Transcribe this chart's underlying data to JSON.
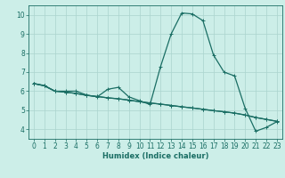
{
  "xlabel": "Humidex (Indice chaleur)",
  "ylabel": "",
  "background_color": "#cceee8",
  "grid_color": "#aad4ce",
  "line_color": "#1a6e64",
  "xlim": [
    -0.5,
    23.5
  ],
  "ylim": [
    3.5,
    10.5
  ],
  "xticks": [
    0,
    1,
    2,
    3,
    4,
    5,
    6,
    7,
    8,
    9,
    10,
    11,
    12,
    13,
    14,
    15,
    16,
    17,
    18,
    19,
    20,
    21,
    22,
    23
  ],
  "yticks": [
    4,
    5,
    6,
    7,
    8,
    9,
    10
  ],
  "line1_x": [
    0,
    1,
    2,
    3,
    4,
    5,
    6,
    7,
    8,
    9,
    10,
    11,
    12,
    13,
    14,
    15,
    16,
    17,
    18,
    19,
    20,
    21,
    22,
    23
  ],
  "line1_y": [
    6.4,
    6.3,
    6.0,
    6.0,
    6.0,
    5.8,
    5.7,
    6.1,
    6.2,
    5.7,
    5.5,
    5.3,
    7.3,
    9.0,
    10.1,
    10.05,
    9.7,
    7.9,
    7.0,
    6.8,
    5.1,
    3.9,
    4.1,
    4.4
  ],
  "line2_x": [
    0,
    1,
    2,
    3,
    4,
    5,
    6,
    7,
    8,
    9,
    10,
    11,
    12,
    13,
    14,
    15,
    16,
    17,
    18,
    19,
    20,
    21,
    22,
    23
  ],
  "line2_y": [
    6.4,
    6.28,
    6.0,
    5.95,
    5.88,
    5.78,
    5.72,
    5.65,
    5.6,
    5.53,
    5.45,
    5.38,
    5.32,
    5.25,
    5.18,
    5.12,
    5.05,
    4.98,
    4.92,
    4.85,
    4.75,
    4.62,
    4.52,
    4.42
  ],
  "line3_x": [
    0,
    1,
    2,
    3,
    4,
    5,
    6,
    7,
    8,
    9,
    10,
    11,
    12,
    13,
    14,
    15,
    16,
    17,
    18,
    19,
    20,
    21,
    22,
    23
  ],
  "line3_y": [
    6.4,
    6.28,
    6.0,
    5.95,
    5.88,
    5.78,
    5.72,
    5.65,
    5.6,
    5.53,
    5.45,
    5.38,
    5.32,
    5.25,
    5.18,
    5.12,
    5.05,
    4.98,
    4.92,
    4.85,
    4.75,
    4.62,
    4.52,
    4.42
  ],
  "marker": "+",
  "markersize": 3,
  "linewidth": 0.9,
  "tick_color": "#1a6e64",
  "label_fontsize": 6.0,
  "tick_fontsize": 5.5
}
